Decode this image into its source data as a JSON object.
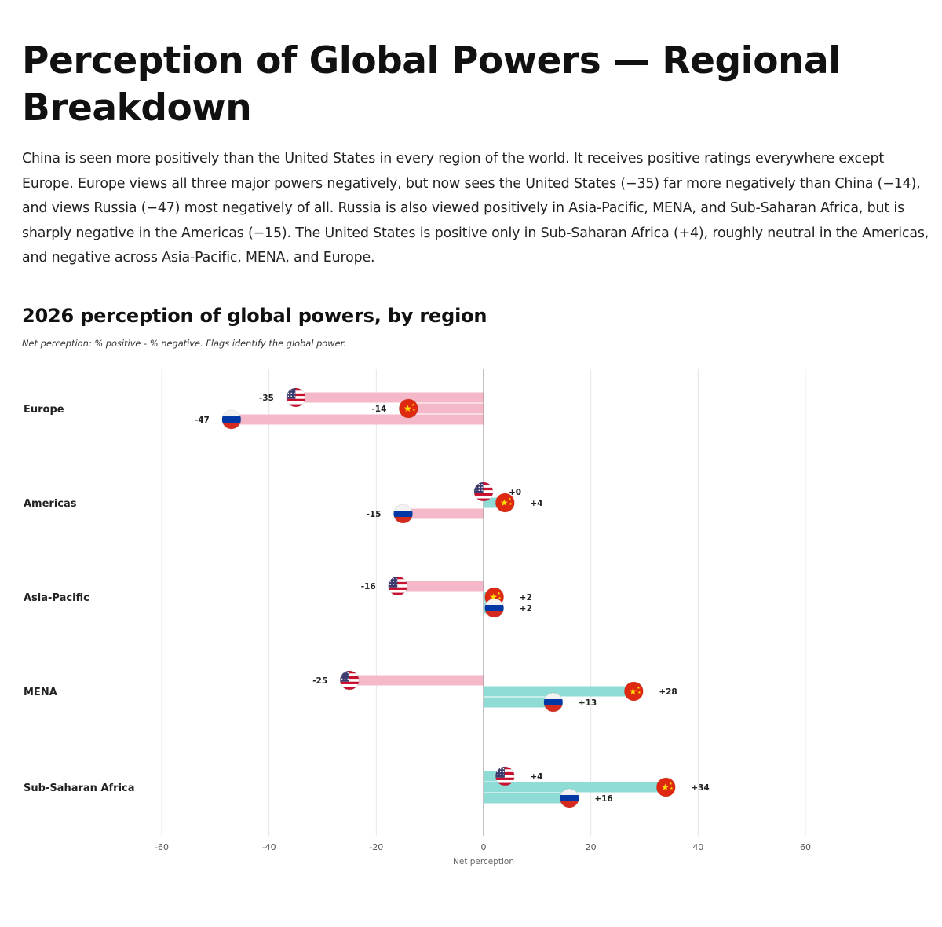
{
  "header": {
    "title": "Perception of Global Powers — Regional Breakdown",
    "intro": "China is seen more positively than the United States in every region of the world. It receives positive ratings everywhere except Europe. Europe views all three major powers negatively, but now sees the United States (−35) far more negatively than China (−14), and views Russia (−47) most negatively of all. Russia is also viewed positively in Asia-Pacific, MENA, and Sub-Saharan Africa, but is sharply negative in the Americas (−15). The United States is positive only in Sub-Saharan Africa (+4), roughly neutral in the Americas, and negative across Asia-Pacific, MENA, and Europe."
  },
  "colors": {
    "negative_bar": "#f4b8c8",
    "positive_bar": "#8fdcd6",
    "gridline": "#e6e6e6",
    "zero_line": "#9a9a9a",
    "usa_red": "#c8102e",
    "usa_blue": "#3c3b6e",
    "china_red": "#de2910",
    "china_yellow": "#ffde00",
    "russia_white": "#f2f2f2",
    "russia_blue": "#0039a6",
    "russia_red": "#d52b1e"
  },
  "chart_data": {
    "type": "bar",
    "orientation": "horizontal",
    "title": "2026 perception of global powers, by region",
    "subtitle": "Net perception: % positive - % negative. Flags identify the global power.",
    "xlabel": "Net perception",
    "xlim": [
      -60,
      60
    ],
    "xticks": [
      -60,
      -40,
      -20,
      0,
      20,
      40,
      60
    ],
    "grid": true,
    "legend": "none (flags identify series)",
    "categories": [
      "Europe",
      "Americas",
      "Asia-Pacific",
      "MENA",
      "Sub-Saharan Africa"
    ],
    "series": [
      {
        "flag": "usa-flag",
        "values": [
          -35,
          0,
          -16,
          -25,
          4
        ],
        "labels": [
          "-35",
          "+0",
          "-16",
          "-25",
          "+4"
        ]
      },
      {
        "flag": "china-flag",
        "values": [
          -14,
          4,
          2,
          28,
          34
        ],
        "labels": [
          "-14",
          "+4",
          "+2",
          "+28",
          "+34"
        ]
      },
      {
        "flag": "russia-flag",
        "values": [
          -47,
          -15,
          2,
          13,
          16
        ],
        "labels": [
          "-47",
          "-15",
          "+2",
          "+13",
          "+16"
        ]
      }
    ]
  }
}
